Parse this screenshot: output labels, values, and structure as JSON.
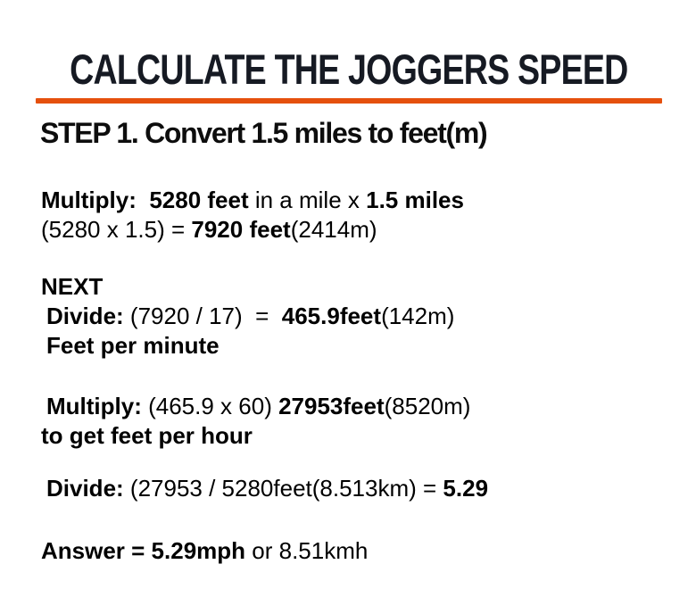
{
  "colors": {
    "accent": "#E5500D",
    "title": "#161A23",
    "body": "#000000"
  },
  "title": {
    "text": "CALCULATE THE JOGGERS SPEED"
  },
  "heading": {
    "text": "STEP 1. Convert 1.5 miles to feet(m)"
  },
  "content": {
    "lines": [
      {
        "gap_before": 0,
        "indent": false,
        "segments": [
          {
            "text": "Multiply:  5280 feet",
            "bold": true
          },
          {
            "text": " in a mile x ",
            "bold": false
          },
          {
            "text": "1.5 miles",
            "bold": true
          }
        ]
      },
      {
        "gap_before": 0,
        "indent": false,
        "segments": [
          {
            "text": "(5280 x 1.5) = ",
            "bold": false
          },
          {
            "text": "7920 feet",
            "bold": true
          },
          {
            "text": "(2414m)",
            "bold": false
          }
        ]
      },
      {
        "gap_before": 31,
        "indent": false,
        "segments": [
          {
            "text": "NEXT",
            "bold": true
          }
        ]
      },
      {
        "gap_before": 0,
        "indent": true,
        "segments": [
          {
            "text": "Divide:",
            "bold": true
          },
          {
            "text": " (7920 / 17)  =  ",
            "bold": false
          },
          {
            "text": "465.9feet",
            "bold": true
          },
          {
            "text": "(142m)",
            "bold": false
          }
        ]
      },
      {
        "gap_before": 0,
        "indent": true,
        "segments": [
          {
            "text": "Feet per minute",
            "bold": true
          }
        ]
      },
      {
        "gap_before": 35,
        "indent": true,
        "segments": [
          {
            "text": "Multiply:",
            "bold": true
          },
          {
            "text": " (465.9 x 60) ",
            "bold": false
          },
          {
            "text": "27953feet",
            "bold": true
          },
          {
            "text": "(8520m)",
            "bold": false
          }
        ]
      },
      {
        "gap_before": 0,
        "indent": false,
        "segments": [
          {
            "text": "to get feet per hour",
            "bold": true
          }
        ]
      },
      {
        "gap_before": 26,
        "indent": true,
        "segments": [
          {
            "text": "Divide:",
            "bold": true
          },
          {
            "text": " (27953 / 5280feet(8.513km) = ",
            "bold": false
          },
          {
            "text": "5.29",
            "bold": true
          }
        ]
      },
      {
        "gap_before": 37,
        "indent": false,
        "segments": [
          {
            "text": "Answer = 5.29mph",
            "bold": true
          },
          {
            "text": " or 8.51kmh",
            "bold": false
          }
        ]
      }
    ]
  }
}
